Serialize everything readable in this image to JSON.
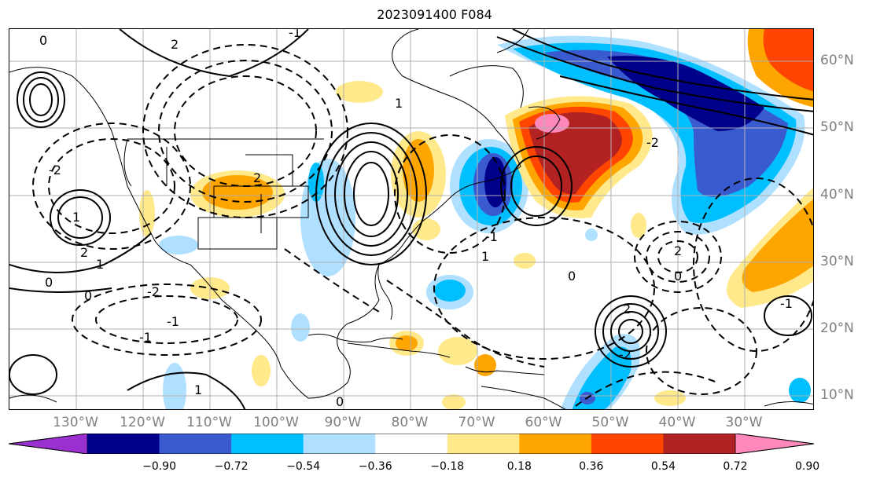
{
  "title": "2023091400 F084",
  "lon_labels": [
    "130°W",
    "120°W",
    "110°W",
    "100°W",
    "90°W",
    "80°W",
    "70°W",
    "60°W",
    "50°W",
    "40°W",
    "30°W"
  ],
  "lat_labels": [
    "60°N",
    "50°N",
    "40°N",
    "30°N",
    "20°N",
    "10°N"
  ],
  "colorbar": {
    "ticks": [
      "−0.90",
      "−0.72",
      "−0.54",
      "−0.36",
      "−0.18",
      "0.18",
      "0.36",
      "0.54",
      "0.72",
      "0.90"
    ],
    "colors": [
      "#9b30d0",
      "#00008b",
      "#3a5bd0",
      "#00bfff",
      "#b0e0ff",
      "#ffffff",
      "#ffe98a",
      "#ffa500",
      "#ff4500",
      "#b22222",
      "#ff88bb"
    ],
    "extend": "both"
  },
  "contour_labels": [
    "0",
    "2",
    "-1",
    "-2",
    "1",
    "2",
    "0",
    "1",
    "-2",
    "-1",
    "-1",
    "0",
    "1",
    "2",
    "-2",
    "0",
    "-1",
    "1",
    "2",
    "0",
    "2",
    "-1",
    "-2",
    "0",
    "1"
  ],
  "colors": {
    "grid": "#b0b0b0",
    "axis_text": "#808080"
  }
}
